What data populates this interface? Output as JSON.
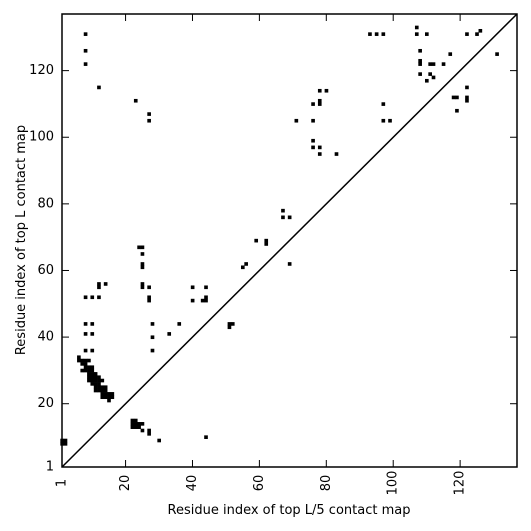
{
  "chart_data": {
    "type": "scatter",
    "xlabel": "Residue index of top L/5 contact map",
    "ylabel": "Residue index of top L contact map",
    "xlim": [
      1,
      137
    ],
    "ylim": [
      1,
      137
    ],
    "xticks": [
      1,
      20,
      40,
      60,
      80,
      100,
      120
    ],
    "yticks": [
      1,
      20,
      40,
      60,
      80,
      100,
      120
    ],
    "diagonal": true,
    "marker_color": "#000000",
    "lower_triangle_points": [
      [
        1,
        9
      ],
      [
        1,
        8
      ],
      [
        2,
        9
      ],
      [
        2,
        8
      ],
      [
        6,
        34
      ],
      [
        6,
        33
      ],
      [
        7,
        33
      ],
      [
        7,
        32
      ],
      [
        8,
        33
      ],
      [
        8,
        32
      ],
      [
        9,
        33
      ],
      [
        7,
        30
      ],
      [
        8,
        31
      ],
      [
        9,
        31
      ],
      [
        10,
        31
      ],
      [
        8,
        30
      ],
      [
        9,
        30
      ],
      [
        10,
        30
      ],
      [
        9,
        29
      ],
      [
        10,
        29
      ],
      [
        11,
        29
      ],
      [
        9,
        28
      ],
      [
        10,
        28
      ],
      [
        11,
        28
      ],
      [
        12,
        28
      ],
      [
        10,
        27
      ],
      [
        11,
        27
      ],
      [
        12,
        27
      ],
      [
        13,
        27
      ],
      [
        9,
        27
      ],
      [
        10,
        26
      ],
      [
        11,
        26
      ],
      [
        12,
        26
      ],
      [
        11,
        25
      ],
      [
        12,
        25
      ],
      [
        13,
        25
      ],
      [
        14,
        25
      ],
      [
        11,
        24
      ],
      [
        12,
        24
      ],
      [
        13,
        24
      ],
      [
        14,
        24
      ],
      [
        13,
        23
      ],
      [
        14,
        23
      ],
      [
        15,
        23
      ],
      [
        16,
        23
      ],
      [
        13,
        22
      ],
      [
        14,
        22
      ],
      [
        15,
        22
      ],
      [
        16,
        22
      ],
      [
        15,
        21
      ],
      [
        8,
        36
      ],
      [
        10,
        36
      ],
      [
        8,
        41
      ],
      [
        10,
        41
      ],
      [
        8,
        44
      ],
      [
        10,
        44
      ],
      [
        8,
        52
      ],
      [
        10,
        52
      ],
      [
        12,
        52
      ],
      [
        12,
        55
      ],
      [
        12,
        56
      ],
      [
        14,
        56
      ],
      [
        22,
        15
      ],
      [
        23,
        15
      ],
      [
        22,
        14
      ],
      [
        23,
        14
      ],
      [
        24,
        14
      ],
      [
        25,
        14
      ],
      [
        22,
        13
      ],
      [
        23,
        13
      ],
      [
        24,
        13
      ],
      [
        25,
        12
      ],
      [
        27,
        12
      ],
      [
        27,
        11
      ],
      [
        30,
        9
      ],
      [
        24,
        67
      ],
      [
        25,
        67
      ],
      [
        25,
        65
      ],
      [
        25,
        62
      ],
      [
        25,
        61
      ],
      [
        25,
        56
      ],
      [
        25,
        55
      ],
      [
        27,
        55
      ],
      [
        27,
        52
      ],
      [
        27,
        51
      ],
      [
        28,
        44
      ],
      [
        28,
        40
      ],
      [
        28,
        36
      ],
      [
        33,
        41
      ],
      [
        36,
        44
      ],
      [
        40,
        55
      ],
      [
        40,
        51
      ],
      [
        43,
        51
      ],
      [
        44,
        51
      ],
      [
        44,
        52
      ],
      [
        44,
        55
      ],
      [
        51,
        44
      ],
      [
        51,
        43
      ],
      [
        52,
        44
      ],
      [
        44,
        10
      ],
      [
        55,
        61
      ],
      [
        56,
        62
      ],
      [
        59,
        69
      ],
      [
        62,
        69
      ],
      [
        62,
        68
      ],
      [
        67,
        78
      ],
      [
        67,
        76
      ],
      [
        69,
        76
      ],
      [
        69,
        62
      ]
    ],
    "upper_triangle_points": [
      [
        8,
        131
      ],
      [
        8,
        126
      ],
      [
        8,
        122
      ],
      [
        12,
        115
      ],
      [
        23,
        111
      ],
      [
        27,
        107
      ],
      [
        27,
        105
      ],
      [
        71,
        105
      ],
      [
        76,
        110
      ],
      [
        76,
        105
      ],
      [
        76,
        99
      ],
      [
        76,
        97
      ],
      [
        78,
        114
      ],
      [
        78,
        111
      ],
      [
        78,
        110
      ],
      [
        78,
        97
      ],
      [
        78,
        95
      ],
      [
        80,
        114
      ],
      [
        83,
        95
      ],
      [
        93,
        131
      ],
      [
        95,
        131
      ],
      [
        97,
        131
      ],
      [
        97,
        110
      ],
      [
        97,
        105
      ],
      [
        99,
        105
      ],
      [
        107,
        133
      ],
      [
        107,
        131
      ],
      [
        108,
        126
      ],
      [
        108,
        123
      ],
      [
        108,
        122
      ],
      [
        108,
        119
      ],
      [
        110,
        117
      ],
      [
        110,
        131
      ],
      [
        111,
        122
      ],
      [
        111,
        119
      ],
      [
        112,
        122
      ],
      [
        112,
        118
      ],
      [
        115,
        122
      ],
      [
        117,
        125
      ],
      [
        118,
        112
      ],
      [
        119,
        112
      ],
      [
        119,
        108
      ],
      [
        122,
        131
      ],
      [
        122,
        115
      ],
      [
        122,
        112
      ],
      [
        122,
        111
      ],
      [
        125,
        131
      ],
      [
        126,
        132
      ],
      [
        131,
        125
      ]
    ]
  }
}
